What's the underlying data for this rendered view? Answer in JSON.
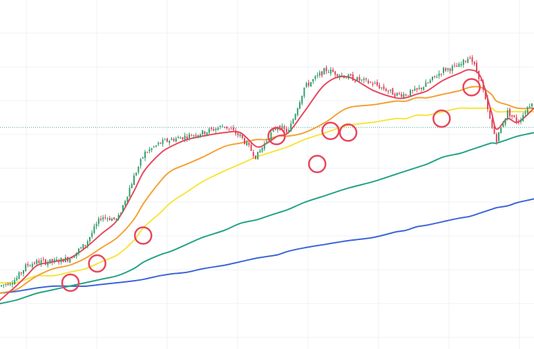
{
  "chart_data": {
    "type": "line",
    "title": "",
    "xlabel": "",
    "ylabel": "",
    "x_range": [
      0,
      100
    ],
    "ylim": [
      0,
      100
    ],
    "grid": true,
    "legend": "none",
    "reference_level": 63.5,
    "reference_color": "#2aa58e",
    "candle_colors": {
      "up": "#2e9e6a",
      "down": "#e0425c"
    },
    "price": {
      "x": [
        0,
        3,
        5,
        7,
        10,
        13,
        16,
        19,
        22,
        25,
        27,
        30,
        32,
        35,
        38,
        42,
        45,
        48,
        50,
        52,
        54,
        57,
        61,
        65,
        70,
        74,
        76,
        78,
        80,
        83,
        86,
        88,
        90,
        92,
        93,
        95,
        97,
        100
      ],
      "y": [
        18,
        20,
        24,
        25,
        25,
        26,
        30,
        38,
        37,
        49,
        56,
        59,
        60,
        61,
        62,
        64,
        61,
        55,
        60,
        64,
        62,
        75,
        80,
        78,
        76,
        73,
        73,
        74,
        76,
        80,
        81,
        84,
        77,
        64,
        60,
        68,
        65,
        72
      ]
    },
    "series": [
      {
        "color": "#e8455a",
        "values": [
          14,
          18,
          21,
          24,
          25,
          26,
          29,
          33,
          37,
          45,
          51,
          56,
          58,
          60,
          61,
          62,
          62,
          58,
          59,
          61,
          62,
          68,
          76,
          78,
          74,
          72,
          72,
          73,
          74,
          77,
          79,
          80,
          78,
          68,
          63,
          66,
          65,
          69
        ]
      },
      {
        "color": "#f4a030",
        "values": [
          16,
          17,
          19,
          21,
          23,
          24,
          26,
          29,
          32,
          37,
          42,
          48,
          51,
          53,
          55,
          58,
          59,
          60,
          60,
          61,
          61,
          62,
          65,
          69,
          70,
          71,
          71,
          72,
          72,
          73,
          74,
          75,
          75,
          73,
          71,
          70,
          69,
          69
        ]
      },
      {
        "color": "#f8e43c",
        "values": [
          19,
          19,
          20,
          21,
          21,
          22,
          23,
          25,
          27,
          31,
          35,
          39,
          42,
          45,
          48,
          51,
          53,
          55,
          56,
          57,
          58,
          60,
          62,
          64,
          65,
          66,
          66,
          67,
          67,
          68,
          69,
          69,
          69,
          69,
          68,
          68,
          68,
          68
        ]
      },
      {
        "color": "#23a186",
        "values": [
          13,
          14,
          15,
          16,
          17,
          18,
          19,
          20,
          21,
          23,
          25,
          27,
          28,
          30,
          32,
          34,
          36,
          37,
          38,
          39,
          40,
          42,
          44,
          46,
          48,
          50,
          51,
          52,
          53,
          55,
          56,
          57,
          58,
          59,
          59,
          60,
          61,
          62
        ]
      },
      {
        "color": "#3b63d8",
        "values": [
          16,
          16.5,
          17,
          17.5,
          18,
          18,
          18,
          18.5,
          19,
          19.5,
          20,
          21,
          21.5,
          22,
          23,
          24,
          25,
          26,
          26.5,
          27,
          28,
          29,
          30,
          31,
          32,
          33.5,
          34,
          35,
          35.5,
          36.5,
          37.5,
          38,
          39,
          40,
          40.5,
          41,
          42,
          43
        ]
      }
    ],
    "annotations": [
      {
        "x": 13.2,
        "y": 19,
        "color": "#e8455a"
      },
      {
        "x": 18.2,
        "y": 24.5,
        "color": "#e8455a"
      },
      {
        "x": 26.8,
        "y": 32.5,
        "color": "#e8455a"
      },
      {
        "x": 51.8,
        "y": 61,
        "color": "#e8455a"
      },
      {
        "x": 59.4,
        "y": 53,
        "color": "#e8455a"
      },
      {
        "x": 61.9,
        "y": 62.5,
        "color": "#e8455a"
      },
      {
        "x": 65.2,
        "y": 62,
        "color": "#e8455a"
      },
      {
        "x": 82.7,
        "y": 66,
        "color": "#e8455a"
      },
      {
        "x": 88.3,
        "y": 75,
        "color": "#e8455a"
      }
    ]
  }
}
